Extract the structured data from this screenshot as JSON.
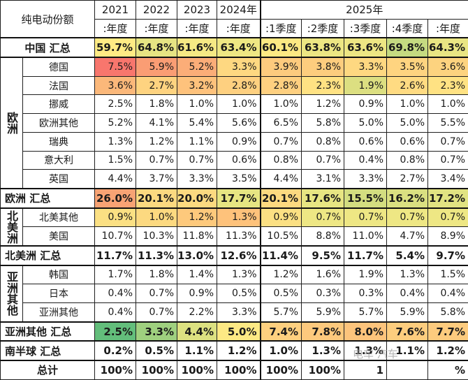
{
  "table": {
    "corner_label": "纯电动份额",
    "years": [
      "2021",
      "2022",
      "2023",
      "2024年",
      "2025年"
    ],
    "periods": [
      ":年度",
      ":年度",
      ":年度",
      ":年度",
      ":1季度",
      ":2季度",
      ":3季度",
      ":4季度",
      ":年度"
    ],
    "rows": [
      {
        "type": "sum",
        "label": "中国 汇总",
        "values": [
          "59.7%",
          "64.8%",
          "61.6%",
          "63.4%",
          "60.1%",
          "63.8%",
          "63.6%",
          "69.8%",
          "64.3%"
        ],
        "colors": [
          "#ffeb84",
          "#e6e483",
          "#f5e984",
          "#eee783",
          "#fce983",
          "#ece683",
          "#ede683",
          "#c5da81",
          "#e9e583"
        ]
      },
      {
        "type": "region",
        "region": "欧洲",
        "label": "德国",
        "values": [
          "7.5%",
          "5.9%",
          "5.2%",
          "3.3%",
          "3.9%",
          "3.8%",
          "3.3%",
          "3.5%",
          "3.6%"
        ],
        "colors": [
          "#f8766d",
          "#fa9d74",
          "#fbad78",
          "#fed881",
          "#fdcb7e",
          "#fdcd7e",
          "#fed881",
          "#fed480",
          "#fdd37f"
        ]
      },
      {
        "type": "region",
        "label": "法国",
        "values": [
          "3.6%",
          "2.7%",
          "3.2%",
          "2.8%",
          "2.8%",
          "2.3%",
          "1.9%",
          "2.6%",
          "2.3%"
        ],
        "colors": [
          "#fbb87a",
          "#fed380",
          "#fec27c",
          "#fed080",
          "#fed080",
          "#ffe283",
          "#dcdf81",
          "#ffdb82",
          "#ffe283"
        ]
      },
      {
        "type": "region",
        "label": "挪威",
        "values": [
          "2.5%",
          "1.8%",
          "1.0%",
          "1.0%",
          "1.0%",
          "1.2%",
          "0.9%",
          "1.0%",
          "1.0%"
        ],
        "colors": []
      },
      {
        "type": "region",
        "label": "欧洲其他",
        "values": [
          "5.2%",
          "4.1%",
          "5.4%",
          "5.6%",
          "6.5%",
          "5.8%",
          "5.0%",
          "5.0%",
          "5.5%"
        ],
        "colors": []
      },
      {
        "type": "region",
        "label": "瑞典",
        "values": [
          "1.3%",
          "1.2%",
          "1.1%",
          "0.9%",
          "0.7%",
          "0.8%",
          "0.6%",
          "0.6%",
          "0.7%"
        ],
        "colors": []
      },
      {
        "type": "region",
        "label": "意大利",
        "values": [
          "1.5%",
          "0.7%",
          "0.7%",
          "0.6%",
          "0.8%",
          "0.7%",
          "0.4%",
          "0.8%",
          "0.7%"
        ],
        "colors": []
      },
      {
        "type": "region",
        "label": "英国",
        "values": [
          "4.4%",
          "3.7%",
          "3.3%",
          "3.5%",
          "4.4%",
          "3.1%",
          "3.3%",
          "2.7%",
          "3.4%"
        ],
        "colors": []
      },
      {
        "type": "sum",
        "label": "欧洲 汇总",
        "values": [
          "26.0%",
          "20.1%",
          "20.0%",
          "17.7%",
          "20.1%",
          "17.6%",
          "15.5%",
          "16.2%",
          "17.2%"
        ],
        "colors": [
          "#f8a374",
          "#fcd980",
          "#fcda80",
          "#e6e582",
          "#fcd980",
          "#e7e582",
          "#d3dd80",
          "#dae081",
          "#e1e382"
        ]
      },
      {
        "type": "region",
        "region": "北美洲",
        "label": "北美其他",
        "values": [
          "0.9%",
          "1.0%",
          "1.2%",
          "1.3%",
          "0.9%",
          "0.7%",
          "0.7%",
          "0.7%",
          "0.7%"
        ],
        "colors": [
          "#fbe083",
          "#fcd980",
          "#fdc97c",
          "#fec27b",
          "#fbe083",
          "#eee784",
          "#eee784",
          "#eee784",
          "#eee784"
        ]
      },
      {
        "type": "region",
        "label": "美国",
        "values": [
          "10.7%",
          "10.3%",
          "11.8%",
          "11.3%",
          "10.5%",
          "8.8%",
          "11.0%",
          "4.7%",
          "8.9%"
        ],
        "colors": []
      },
      {
        "type": "sum",
        "label": "北美洲 汇总",
        "values": [
          "11.7%",
          "11.3%",
          "13.0%",
          "12.6%",
          "11.4%",
          "9.5%",
          "11.7%",
          "5.4%",
          "9.7%"
        ],
        "colors": []
      },
      {
        "type": "region",
        "region": "亚洲其他",
        "label": "韩国",
        "values": [
          "1.7%",
          "1.8%",
          "1.4%",
          "1.3%",
          "1.2%",
          "1.6%",
          "1.9%",
          "1.3%",
          "1.5%"
        ],
        "colors": []
      },
      {
        "type": "region",
        "label": "日本",
        "values": [
          "0.4%",
          "0.7%",
          "0.9%",
          "0.5%",
          "0.5%",
          "0.3%",
          "0.3%",
          "0.4%",
          "0.4%"
        ],
        "colors": []
      },
      {
        "type": "region",
        "label": "亚洲其他",
        "values": [
          "0.4%",
          "0.7%",
          "2.2%",
          "3.3%",
          "5.7%",
          "5.9%",
          "5.7%",
          "5.9%",
          "5.8%"
        ],
        "colors": []
      },
      {
        "type": "sum",
        "label": "亚洲其他 汇总",
        "values": [
          "2.5%",
          "3.3%",
          "4.4%",
          "5.0%",
          "7.4%",
          "7.8%",
          "8.0%",
          "7.6%",
          "7.7%"
        ],
        "colors": [
          "#63be7b",
          "#9fd07f",
          "#dce181",
          "#fde984",
          "#fed07f",
          "#fdc97d",
          "#fdc47c",
          "#fdcd7e",
          "#fdcb7e"
        ]
      },
      {
        "type": "sum",
        "label": "南半球 汇总",
        "values": [
          "0.2%",
          "0.5%",
          "1.1%",
          "1.2%",
          "1.0%",
          "1.3%",
          "1.3%",
          "1.1%",
          "1.2%"
        ],
        "colors": []
      },
      {
        "type": "total",
        "label": "总计",
        "values": [
          "100%",
          "100%",
          "100%",
          "100%",
          "100%",
          "100%",
          "1",
          "",
          "%"
        ],
        "colors": []
      }
    ]
  },
  "watermark": "电车 汽车"
}
